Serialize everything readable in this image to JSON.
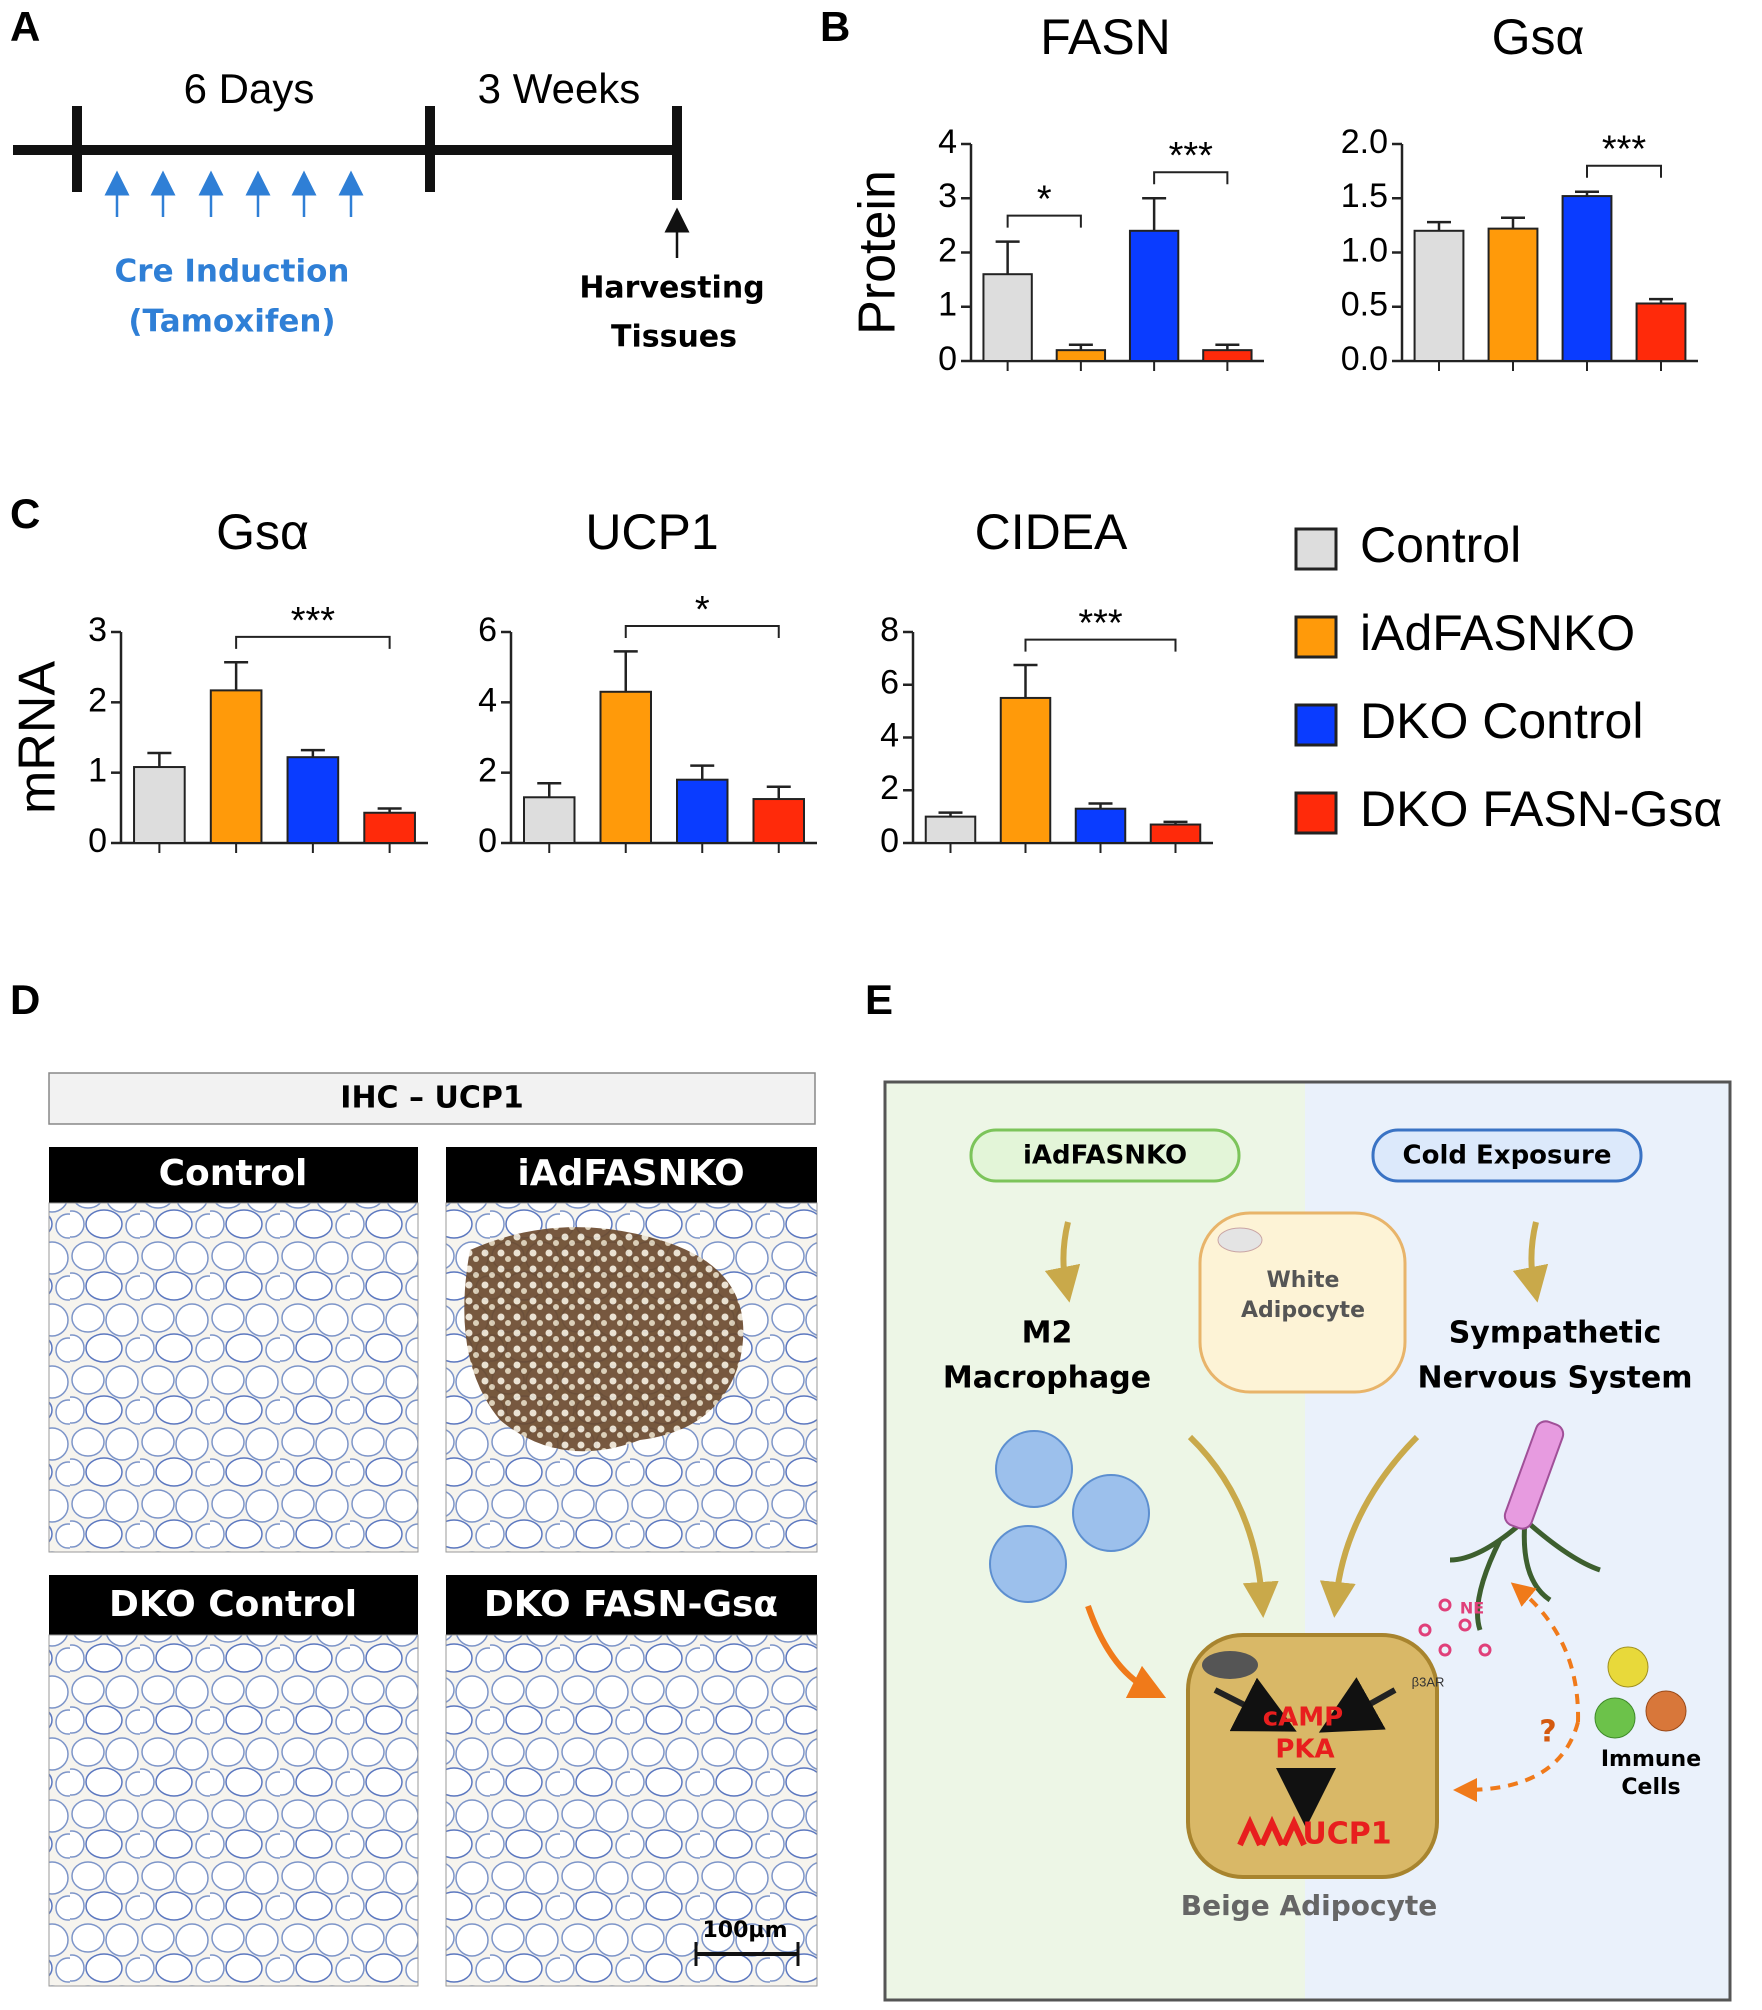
{
  "panel_labels": [
    "A",
    "B",
    "C",
    "D",
    "E"
  ],
  "timeline": {
    "periods": [
      "6 Days",
      "3 Weeks"
    ],
    "induction": [
      "Cre Induction",
      "(Tamoxifen)"
    ],
    "harvest": [
      "Harvesting",
      "Tissues"
    ]
  },
  "groups": [
    {
      "name": "Control",
      "color": "#dddddd"
    },
    {
      "name": "iAdFASNKO",
      "color": "#ff9a0a"
    },
    {
      "name": "DKO Control",
      "color": "#0a3cff"
    },
    {
      "name": "DKO FASN-Gsα",
      "color": "#ff2a0a"
    }
  ],
  "chart_data": [
    {
      "type": "bar",
      "title": "FASN",
      "ylabel": "Protein",
      "values": [
        1.6,
        0.2,
        2.4,
        0.2
      ],
      "errors": [
        0.6,
        0.1,
        0.6,
        0.1
      ],
      "ylim": [
        0,
        4
      ],
      "yticks": [
        0,
        1,
        2,
        3,
        4
      ],
      "significance": [
        {
          "label": "*",
          "between": [
            0,
            1
          ]
        },
        {
          "label": "***",
          "between": [
            2,
            3
          ]
        }
      ]
    },
    {
      "type": "bar",
      "title": "Gsα",
      "values": [
        1.2,
        1.22,
        1.52,
        0.53
      ],
      "errors": [
        0.08,
        0.1,
        0.04,
        0.04
      ],
      "ylim": [
        0,
        2
      ],
      "yticks": [
        {
          "value": 0,
          "label": "0.0"
        },
        0.5,
        {
          "value": 1,
          "label": "1.0"
        },
        1.5,
        {
          "value": 2,
          "label": "2.0"
        }
      ],
      "significance": [
        {
          "label": "***",
          "between": [
            2,
            3
          ]
        }
      ]
    },
    {
      "type": "bar",
      "title": "Gsα",
      "ylabel": "mRNA",
      "values": [
        1.08,
        2.17,
        1.22,
        0.43
      ],
      "errors": [
        0.2,
        0.4,
        0.1,
        0.06
      ],
      "ylim": [
        0,
        3
      ],
      "yticks": [
        0,
        1,
        2,
        3
      ],
      "significance": [
        {
          "label": "***",
          "between": [
            1,
            3
          ]
        }
      ]
    },
    {
      "type": "bar",
      "title": "UCP1",
      "values": [
        1.3,
        4.3,
        1.8,
        1.25
      ],
      "errors": [
        0.4,
        1.15,
        0.4,
        0.35
      ],
      "ylim": [
        0,
        6
      ],
      "yticks": [
        0,
        2,
        4,
        6
      ],
      "significance": [
        {
          "label": "*",
          "between": [
            1,
            3
          ]
        }
      ]
    },
    {
      "type": "bar",
      "title": "CIDEA",
      "values": [
        1.0,
        5.5,
        1.3,
        0.7
      ],
      "errors": [
        0.15,
        1.25,
        0.2,
        0.1
      ],
      "ylim": [
        0,
        8
      ],
      "yticks": [
        0,
        2,
        4,
        6,
        8
      ],
      "significance": [
        {
          "label": "***",
          "between": [
            1,
            3
          ]
        }
      ]
    }
  ],
  "ihc": {
    "header": "IHC – UCP1",
    "panels": [
      "Control",
      "iAdFASNKO",
      "DKO Control",
      "DKO FASN-Gsα"
    ],
    "scale": "100µm"
  },
  "diagram": {
    "inputs": [
      "iAdFASNKO",
      "Cold Exposure"
    ],
    "white_adipocyte": [
      "White",
      "Adipocyte"
    ],
    "m2": [
      "M2",
      "Macrophage"
    ],
    "sns": [
      "Sympathetic",
      "Nervous System"
    ],
    "ne": "NE",
    "receptor": "β3AR",
    "signals": [
      "cAMP",
      "PKA"
    ],
    "ucp1": "UCP1",
    "question": "?",
    "immune": [
      "Immune",
      "Cells"
    ],
    "beige": "Beige Adipocyte"
  }
}
